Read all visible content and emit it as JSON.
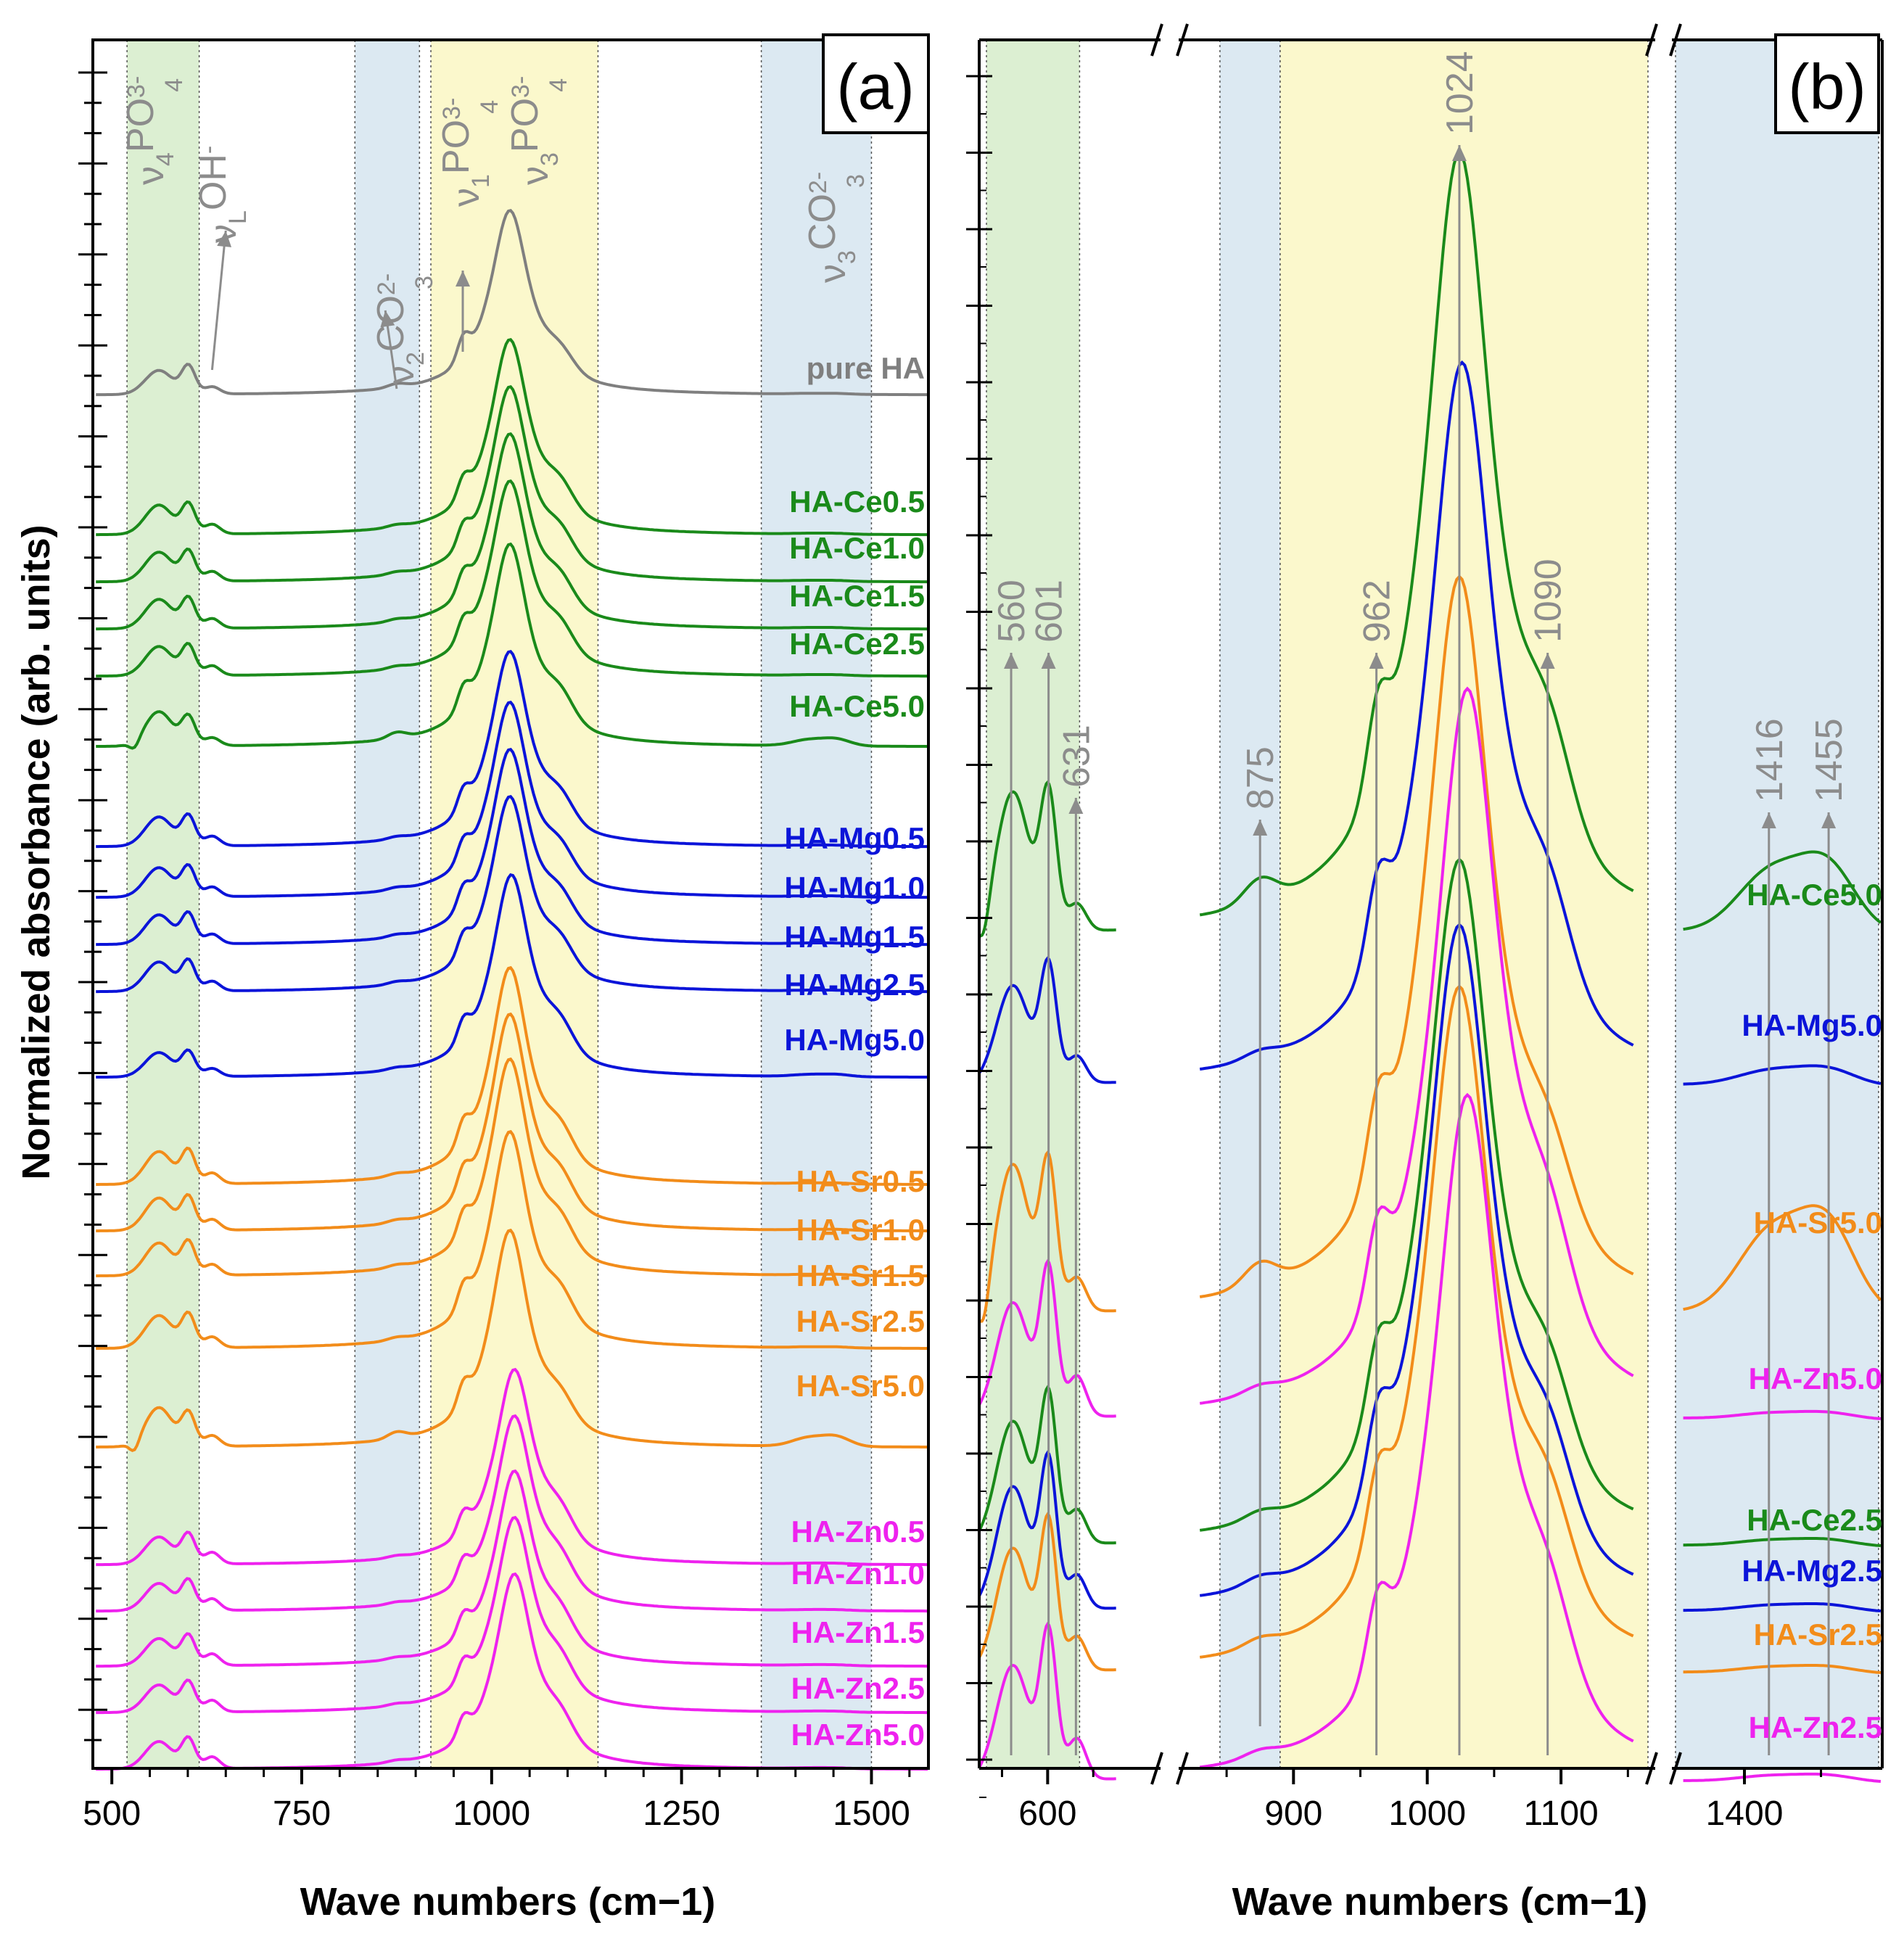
{
  "figure": {
    "ylabel": "Normalized absorbance (arb. units)",
    "xlabel": "Wave numbers (cm−1)"
  },
  "colors": {
    "pure": "#7f7f7f",
    "Ce": "#1a8a1a",
    "Mg": "#0b14d9",
    "Sr": "#f28c1a",
    "Zn": "#ee22ee",
    "green_band": "#dcefd2",
    "blue_band": "#dce9f2",
    "yellow_band": "#fbf8cc",
    "annotation": "#8c8c8c"
  },
  "chart_data": [
    {
      "panel": "(a)",
      "type": "line",
      "xlabel": "Wave numbers (cm−1)",
      "ylabel": "Normalized absorbance (arb. units)",
      "xlim": [
        475,
        1575
      ],
      "xticks": [
        500,
        750,
        1000,
        1250,
        1500
      ],
      "tick_labels": [
        "500",
        "750",
        "1000",
        "1250",
        "1500"
      ],
      "bands": [
        {
          "from": 520,
          "to": 615,
          "color": "green"
        },
        {
          "from": 820,
          "to": 905,
          "color": "blue"
        },
        {
          "from": 920,
          "to": 1140,
          "color": "yellow"
        },
        {
          "from": 1355,
          "to": 1500,
          "color": "blue"
        }
      ],
      "band_labels": [
        {
          "base": "ν",
          "sub": "4",
          "main": "PO",
          "sup": "3-",
          "sub2": "4"
        },
        {
          "base": "ν",
          "sub": "L",
          "main": "OH",
          "sup": "-",
          "sub2": ""
        },
        {
          "base": "ν",
          "sub": "2",
          "main": "CO",
          "sup": "2-",
          "sub2": "3"
        },
        {
          "base": "ν",
          "sub": "1",
          "main": "PO",
          "sup": "3-",
          "sub2": "4"
        },
        {
          "base": "ν",
          "sub": "3",
          "main": "PO",
          "sup": "3-",
          "sub2": "4"
        },
        {
          "base": "ν",
          "sub": "3",
          "main": "CO",
          "sup": "2-",
          "sub2": "3"
        }
      ],
      "peak_positions": [
        560,
        601,
        631,
        875,
        962,
        1024,
        1090,
        1416,
        1455
      ],
      "series": [
        {
          "name": "pure HA",
          "group": "pure"
        },
        {
          "name": "HA-Ce0.5",
          "group": "Ce"
        },
        {
          "name": "HA-Ce1.0",
          "group": "Ce"
        },
        {
          "name": "HA-Ce1.5",
          "group": "Ce"
        },
        {
          "name": "HA-Ce2.5",
          "group": "Ce"
        },
        {
          "name": "HA-Ce5.0",
          "group": "Ce"
        },
        {
          "name": "HA-Mg0.5",
          "group": "Mg"
        },
        {
          "name": "HA-Mg1.0",
          "group": "Mg"
        },
        {
          "name": "HA-Mg1.5",
          "group": "Mg"
        },
        {
          "name": "HA-Mg2.5",
          "group": "Mg"
        },
        {
          "name": "HA-Mg5.0",
          "group": "Mg"
        },
        {
          "name": "HA-Sr0.5",
          "group": "Sr"
        },
        {
          "name": "HA-Sr1.0",
          "group": "Sr"
        },
        {
          "name": "HA-Sr1.5",
          "group": "Sr"
        },
        {
          "name": "HA-Sr2.5",
          "group": "Sr"
        },
        {
          "name": "HA-Sr5.0",
          "group": "Sr"
        },
        {
          "name": "HA-Zn0.5",
          "group": "Zn"
        },
        {
          "name": "HA-Zn1.0",
          "group": "Zn"
        },
        {
          "name": "HA-Zn1.5",
          "group": "Zn"
        },
        {
          "name": "HA-Zn2.5",
          "group": "Zn"
        },
        {
          "name": "HA-Zn5.0",
          "group": "Zn"
        }
      ]
    },
    {
      "panel": "(b)",
      "type": "line",
      "xlabel": "Wave numbers (cm−1)",
      "segments": [
        {
          "xlim": [
            525,
            680
          ],
          "xticks": [
            600
          ],
          "tick_labels": [
            "600"
          ]
        },
        {
          "xlim": [
            825,
            1165
          ],
          "xticks": [
            900,
            1000,
            1100
          ],
          "tick_labels": [
            "900",
            "1000",
            "1100"
          ]
        },
        {
          "xlim": [
            1355,
            1490
          ],
          "xticks": [
            1400
          ],
          "tick_labels": [
            "1400"
          ]
        }
      ],
      "peak_labels": [
        "560",
        "601",
        "631",
        "875",
        "962",
        "1024",
        "1090",
        "1416",
        "1455"
      ],
      "series": [
        {
          "name": "HA-Ce5.0",
          "group": "Ce"
        },
        {
          "name": "HA-Mg5.0",
          "group": "Mg"
        },
        {
          "name": "HA-Sr5.0",
          "group": "Sr"
        },
        {
          "name": "HA-Zn5.0",
          "group": "Zn"
        },
        {
          "name": "HA-Ce2.5",
          "group": "Ce"
        },
        {
          "name": "HA-Mg2.5",
          "group": "Mg"
        },
        {
          "name": "HA-Sr2.5",
          "group": "Sr"
        },
        {
          "name": "HA-Zn2.5",
          "group": "Zn"
        }
      ]
    }
  ]
}
